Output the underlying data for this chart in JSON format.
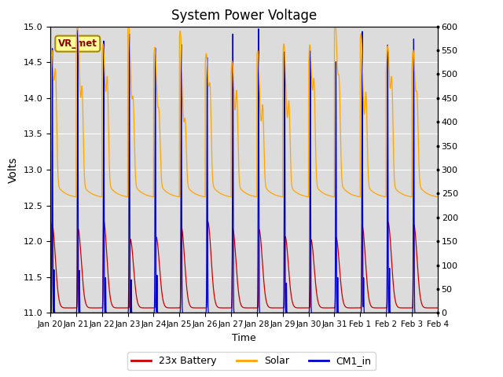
{
  "title": "System Power Voltage",
  "xlabel": "Time",
  "ylabel": "Volts",
  "ylim_left": [
    11.0,
    15.0
  ],
  "ylim_right": [
    0,
    600
  ],
  "yticks_left": [
    11.0,
    11.5,
    12.0,
    12.5,
    13.0,
    13.5,
    14.0,
    14.5,
    15.0
  ],
  "yticks_right": [
    0,
    50,
    100,
    150,
    200,
    250,
    300,
    350,
    400,
    450,
    500,
    550,
    600
  ],
  "xtick_labels": [
    "Jan 20",
    "Jan 21",
    "Jan 22",
    "Jan 23",
    "Jan 24",
    "Jan 25",
    "Jan 26",
    "Jan 27",
    "Jan 28",
    "Jan 29",
    "Jan 30",
    "Jan 31",
    "Feb 1",
    "Feb 2",
    "Feb 3",
    "Feb 4"
  ],
  "plot_bg_color": "#dcdcdc",
  "title_fontsize": 12,
  "legend_labels": [
    "23x Battery",
    "Solar",
    "CM1_in"
  ],
  "line_colors": [
    "#cc0000",
    "#ffa500",
    "#0000cc"
  ],
  "vr_met_label": "VR_met",
  "annot_fc": "#ffff99",
  "annot_ec": "#aa8800",
  "n_days": 15,
  "pts_per_day": 500
}
